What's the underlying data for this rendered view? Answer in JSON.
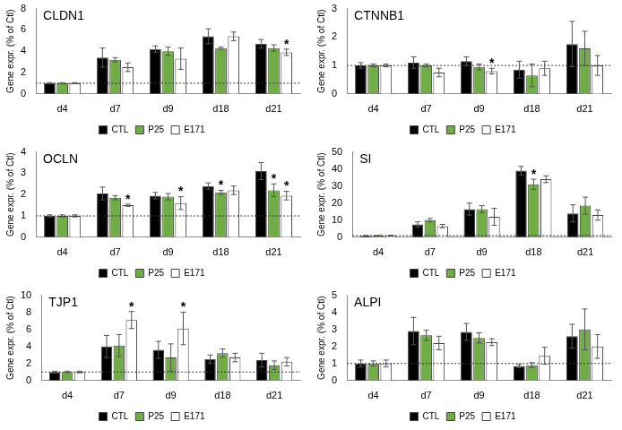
{
  "chart_data": [
    {
      "type": "bar",
      "title": "CLDN1",
      "categories": [
        "d4",
        "d7",
        "d9",
        "d18",
        "d21"
      ],
      "y_label": "Gene expr. (% of Ctl)",
      "ylim": [
        0,
        8
      ],
      "yticks": [
        0,
        2,
        4,
        6,
        8
      ],
      "grid": false,
      "legend": "bottom",
      "reference_line": 1,
      "series": [
        {
          "name": "CTL",
          "color": "#000000",
          "values": [
            1.0,
            3.4,
            4.2,
            5.4,
            4.7
          ],
          "errors": [
            0.05,
            0.9,
            0.3,
            0.7,
            0.4
          ],
          "annotations": [
            null,
            null,
            null,
            null,
            null
          ]
        },
        {
          "name": "P25",
          "color": "#70ad47",
          "values": [
            1.0,
            3.2,
            4.0,
            4.3,
            4.3
          ],
          "errors": [
            0.05,
            0.2,
            0.4,
            0.1,
            0.3
          ],
          "annotations": [
            null,
            null,
            null,
            null,
            null
          ]
        },
        {
          "name": "E171",
          "color": "#ffffff",
          "values": [
            1.0,
            2.5,
            3.3,
            5.4,
            3.9
          ],
          "errors": [
            0.05,
            0.4,
            1.0,
            0.4,
            0.3
          ],
          "annotations": [
            null,
            null,
            null,
            null,
            "*"
          ]
        }
      ]
    },
    {
      "type": "bar",
      "title": "CTNNB1",
      "categories": [
        "d4",
        "d7",
        "d9",
        "d18",
        "d21"
      ],
      "y_label": "Gene expr. (% of Ctl)",
      "ylim": [
        0,
        3
      ],
      "yticks": [
        0,
        1,
        2,
        3
      ],
      "grid": false,
      "legend": "bottom",
      "reference_line": 1,
      "series": [
        {
          "name": "CTL",
          "color": "#000000",
          "values": [
            1.0,
            1.1,
            1.15,
            0.85,
            1.75
          ],
          "errors": [
            0.1,
            0.2,
            0.15,
            0.3,
            0.8
          ],
          "annotations": [
            null,
            null,
            null,
            null,
            null
          ]
        },
        {
          "name": "P25",
          "color": "#70ad47",
          "values": [
            1.0,
            1.0,
            0.95,
            0.65,
            1.6
          ],
          "errors": [
            0.05,
            0.05,
            0.1,
            0.4,
            0.6
          ],
          "annotations": [
            null,
            null,
            null,
            null,
            null
          ]
        },
        {
          "name": "E171",
          "color": "#ffffff",
          "values": [
            1.0,
            0.75,
            0.8,
            0.9,
            1.0
          ],
          "errors": [
            0.05,
            0.15,
            0.1,
            0.25,
            0.35
          ],
          "annotations": [
            null,
            null,
            "*",
            null,
            null
          ]
        }
      ]
    },
    {
      "type": "bar",
      "title": "OCLN",
      "categories": [
        "d4",
        "d7",
        "d9",
        "d18",
        "d21"
      ],
      "y_label": "Gene expr. (% of Ctl)",
      "ylim": [
        0,
        4
      ],
      "yticks": [
        0,
        1,
        2,
        3,
        4
      ],
      "grid": false,
      "legend": "bottom",
      "reference_line": 1,
      "series": [
        {
          "name": "CTL",
          "color": "#000000",
          "values": [
            1.0,
            2.05,
            1.95,
            2.4,
            3.1
          ],
          "errors": [
            0.05,
            0.3,
            0.15,
            0.15,
            0.4
          ],
          "annotations": [
            null,
            null,
            null,
            null,
            null
          ]
        },
        {
          "name": "P25",
          "color": "#70ad47",
          "values": [
            1.0,
            1.85,
            1.9,
            2.1,
            2.2
          ],
          "errors": [
            0.05,
            0.1,
            0.15,
            0.1,
            0.3
          ],
          "annotations": [
            null,
            null,
            null,
            "*",
            "*"
          ]
        },
        {
          "name": "E171",
          "color": "#ffffff",
          "values": [
            1.0,
            1.5,
            1.6,
            2.2,
            1.95
          ],
          "errors": [
            0.05,
            0.05,
            0.3,
            0.2,
            0.2
          ],
          "annotations": [
            null,
            "*",
            "*",
            null,
            "*"
          ]
        }
      ]
    },
    {
      "type": "bar",
      "title": "SI",
      "categories": [
        "d4",
        "d7",
        "d9",
        "d18",
        "d21"
      ],
      "y_label": "Gene expr. (% of Ctl)",
      "ylim": [
        0,
        50
      ],
      "yticks": [
        0,
        10,
        20,
        30,
        40,
        50
      ],
      "grid": false,
      "legend": "bottom",
      "reference_line": 1,
      "series": [
        {
          "name": "CTL",
          "color": "#000000",
          "values": [
            0.8,
            7.5,
            16.5,
            39,
            14
          ],
          "errors": [
            0.2,
            1.5,
            3.5,
            2.5,
            5
          ],
          "annotations": [
            null,
            null,
            null,
            null,
            null
          ]
        },
        {
          "name": "P25",
          "color": "#70ad47",
          "values": [
            0.9,
            10,
            16.5,
            31,
            18.5
          ],
          "errors": [
            0.2,
            1,
            2,
            3,
            5
          ],
          "annotations": [
            null,
            null,
            null,
            "*",
            null
          ]
        },
        {
          "name": "E171",
          "color": "#ffffff",
          "values": [
            1.0,
            6.5,
            12,
            34,
            13
          ],
          "errors": [
            0.2,
            1,
            5,
            2,
            3
          ],
          "annotations": [
            null,
            null,
            null,
            null,
            null
          ]
        }
      ]
    },
    {
      "type": "bar",
      "title": "TJP1",
      "categories": [
        "d4",
        "d7",
        "d9",
        "d18",
        "d21"
      ],
      "y_label": "Gene expr. (% of Ctl)",
      "ylim": [
        0,
        10
      ],
      "yticks": [
        0,
        2,
        4,
        6,
        8,
        10
      ],
      "grid": false,
      "legend": "bottom",
      "reference_line": 1,
      "series": [
        {
          "name": "CTL",
          "color": "#000000",
          "values": [
            1.0,
            4.0,
            3.6,
            2.5,
            2.4
          ],
          "errors": [
            0.1,
            1.3,
            1.0,
            0.5,
            0.8
          ],
          "annotations": [
            null,
            null,
            null,
            null,
            null
          ]
        },
        {
          "name": "P25",
          "color": "#70ad47",
          "values": [
            1.0,
            4.1,
            2.7,
            3.2,
            1.8
          ],
          "errors": [
            0.1,
            1.3,
            1.6,
            0.5,
            0.5
          ],
          "annotations": [
            null,
            null,
            null,
            null,
            null
          ]
        },
        {
          "name": "E171",
          "color": "#ffffff",
          "values": [
            1.0,
            7.1,
            6.1,
            2.7,
            2.2
          ],
          "errors": [
            0.1,
            1.0,
            1.9,
            0.5,
            0.5
          ],
          "annotations": [
            null,
            "*",
            "*",
            null,
            null
          ]
        }
      ]
    },
    {
      "type": "bar",
      "title": "ALPI",
      "categories": [
        "d4",
        "d7",
        "d9",
        "d18",
        "d21"
      ],
      "y_label": "Gene expr. (% of Ctl)",
      "ylim": [
        0,
        5
      ],
      "yticks": [
        0,
        1,
        2,
        3,
        4,
        5
      ],
      "grid": false,
      "legend": "bottom",
      "reference_line": 1,
      "series": [
        {
          "name": "CTL",
          "color": "#000000",
          "values": [
            1.0,
            2.9,
            2.85,
            0.85,
            2.6
          ],
          "errors": [
            0.2,
            0.8,
            0.5,
            0.1,
            0.7
          ],
          "annotations": [
            null,
            null,
            null,
            null,
            null
          ]
        },
        {
          "name": "P25",
          "color": "#70ad47",
          "values": [
            1.0,
            2.65,
            2.5,
            0.9,
            3.0
          ],
          "errors": [
            0.15,
            0.3,
            0.3,
            0.15,
            1.2
          ],
          "annotations": [
            null,
            null,
            null,
            null,
            null
          ]
        },
        {
          "name": "E171",
          "color": "#ffffff",
          "values": [
            1.0,
            2.2,
            2.25,
            1.45,
            2.0
          ],
          "errors": [
            0.2,
            0.4,
            0.2,
            0.5,
            0.7
          ],
          "annotations": [
            null,
            null,
            null,
            null,
            null
          ]
        }
      ]
    }
  ]
}
